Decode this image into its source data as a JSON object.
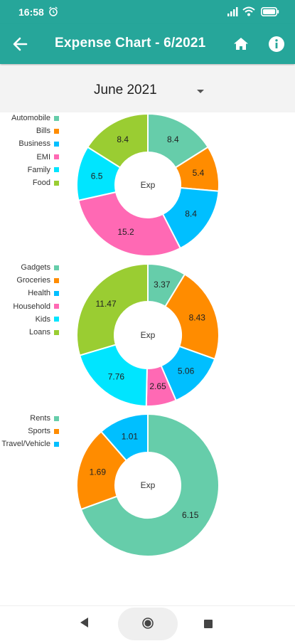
{
  "status": {
    "time": "16:58"
  },
  "app_bar": {
    "title": "Expense Chart - 6/2021"
  },
  "month_selector": {
    "selected": "June 2021"
  },
  "center_text": "Exp",
  "charts": [
    {
      "legend": [
        {
          "label": "Automobile",
          "color": "#66cdaa"
        },
        {
          "label": "Bills",
          "color": "#ff8c00"
        },
        {
          "label": "Business",
          "color": "#00bfff"
        },
        {
          "label": "EMI",
          "color": "#ff69b4"
        },
        {
          "label": "Family",
          "color": "#00e5ff"
        },
        {
          "label": "Food",
          "color": "#9acd32"
        }
      ],
      "slices": [
        {
          "label": "Automobile",
          "value": 8.4,
          "display": "8.4",
          "color": "#66cdaa"
        },
        {
          "label": "Bills",
          "value": 5.4,
          "display": "5.4",
          "color": "#ff8c00"
        },
        {
          "label": "Business",
          "value": 8.4,
          "display": "8.4",
          "color": "#00bfff"
        },
        {
          "label": "EMI",
          "value": 15.2,
          "display": "15.2",
          "color": "#ff69b4"
        },
        {
          "label": "Family",
          "value": 6.5,
          "display": "6.5",
          "color": "#00e5ff"
        },
        {
          "label": "Food",
          "value": 8.4,
          "display": "8.4",
          "color": "#9acd32"
        }
      ]
    },
    {
      "legend": [
        {
          "label": "Gadgets",
          "color": "#66cdaa"
        },
        {
          "label": "Groceries",
          "color": "#ff8c00"
        },
        {
          "label": "Health",
          "color": "#00bfff"
        },
        {
          "label": "Household",
          "color": "#ff69b4"
        },
        {
          "label": "Kids",
          "color": "#00e5ff"
        },
        {
          "label": "Loans",
          "color": "#9acd32"
        }
      ],
      "slices": [
        {
          "label": "Gadgets",
          "value": 3.37,
          "display": "3.37",
          "color": "#66cdaa"
        },
        {
          "label": "Groceries",
          "value": 8.43,
          "display": "8.43",
          "color": "#ff8c00"
        },
        {
          "label": "Health",
          "value": 5.06,
          "display": "5.06",
          "color": "#00bfff"
        },
        {
          "label": "Household",
          "value": 2.65,
          "display": "2.65",
          "color": "#ff69b4"
        },
        {
          "label": "Kids",
          "value": 7.76,
          "display": "7.76",
          "color": "#00e5ff"
        },
        {
          "label": "Loans",
          "value": 11.47,
          "display": "11.47",
          "color": "#9acd32"
        }
      ]
    },
    {
      "legend": [
        {
          "label": "Rents",
          "color": "#66cdaa"
        },
        {
          "label": "Sports",
          "color": "#ff8c00"
        },
        {
          "label": "Travel/Vehicle",
          "color": "#00bfff"
        }
      ],
      "slices": [
        {
          "label": "Rents",
          "value": 6.15,
          "display": "6.15",
          "color": "#66cdaa"
        },
        {
          "label": "Sports",
          "value": 1.69,
          "display": "1.69",
          "color": "#ff8c00"
        },
        {
          "label": "Travel/Vehicle",
          "value": 1.01,
          "display": "1.01",
          "color": "#00bfff"
        }
      ]
    }
  ]
}
